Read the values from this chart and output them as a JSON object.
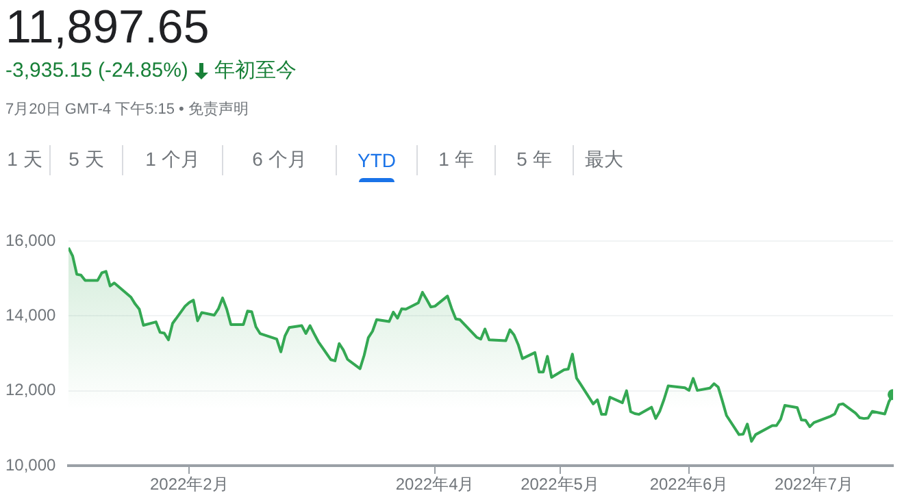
{
  "chart_data": {
    "type": "area",
    "title": "11,897.65",
    "subtitle": "-3,935.15 (-24.85%)",
    "annotations": [
      "年初至今",
      "7月20日 GMT-4 下午5:15 • 免责声明",
      "1 天",
      "5 天",
      "1 个月",
      "6 个月",
      "YTD",
      "1 年",
      "5 年",
      "最大"
    ],
    "x": [
      "2022-01-03",
      "2022-01-04",
      "2022-01-05",
      "2022-01-06",
      "2022-01-07",
      "2022-01-10",
      "2022-01-11",
      "2022-01-12",
      "2022-01-13",
      "2022-01-14",
      "2022-01-18",
      "2022-01-19",
      "2022-01-20",
      "2022-01-21",
      "2022-01-24",
      "2022-01-25",
      "2022-01-26",
      "2022-01-27",
      "2022-01-28",
      "2022-01-31",
      "2022-02-01",
      "2022-02-02",
      "2022-02-03",
      "2022-02-04",
      "2022-02-07",
      "2022-02-08",
      "2022-02-09",
      "2022-02-10",
      "2022-02-11",
      "2022-02-14",
      "2022-02-15",
      "2022-02-16",
      "2022-02-17",
      "2022-02-18",
      "2022-02-22",
      "2022-02-23",
      "2022-02-24",
      "2022-02-25",
      "2022-02-28",
      "2022-03-01",
      "2022-03-02",
      "2022-03-03",
      "2022-03-04",
      "2022-03-07",
      "2022-03-08",
      "2022-03-09",
      "2022-03-10",
      "2022-03-11",
      "2022-03-14",
      "2022-03-15",
      "2022-03-16",
      "2022-03-17",
      "2022-03-18",
      "2022-03-21",
      "2022-03-22",
      "2022-03-23",
      "2022-03-24",
      "2022-03-25",
      "2022-03-28",
      "2022-03-29",
      "2022-03-30",
      "2022-03-31",
      "2022-04-01",
      "2022-04-04",
      "2022-04-05",
      "2022-04-06",
      "2022-04-07",
      "2022-04-11",
      "2022-04-12",
      "2022-04-13",
      "2022-04-14",
      "2022-04-18",
      "2022-04-19",
      "2022-04-20",
      "2022-04-21",
      "2022-04-22",
      "2022-04-25",
      "2022-04-26",
      "2022-04-27",
      "2022-04-28",
      "2022-04-29",
      "2022-05-02",
      "2022-05-03",
      "2022-05-04",
      "2022-05-05",
      "2022-05-06",
      "2022-05-09",
      "2022-05-10",
      "2022-05-11",
      "2022-05-12",
      "2022-05-13",
      "2022-05-16",
      "2022-05-17",
      "2022-05-18",
      "2022-05-19",
      "2022-05-20",
      "2022-05-23",
      "2022-05-24",
      "2022-05-25",
      "2022-05-26",
      "2022-05-27",
      "2022-05-31",
      "2022-06-01",
      "2022-06-02",
      "2022-06-03",
      "2022-06-06",
      "2022-06-07",
      "2022-06-08",
      "2022-06-09",
      "2022-06-10",
      "2022-06-13",
      "2022-06-14",
      "2022-06-15",
      "2022-06-16",
      "2022-06-17",
      "2022-06-21",
      "2022-06-22",
      "2022-06-23",
      "2022-06-24",
      "2022-06-27",
      "2022-06-28",
      "2022-06-29",
      "2022-06-30",
      "2022-07-01",
      "2022-07-05",
      "2022-07-06",
      "2022-07-07",
      "2022-07-08",
      "2022-07-11",
      "2022-07-12",
      "2022-07-13",
      "2022-07-14",
      "2022-07-15",
      "2022-07-18",
      "2022-07-19",
      "2022-07-20"
    ],
    "series": [
      {
        "color": "#34a853",
        "values": [
          15820,
          15600,
          15110,
          15090,
          14950,
          14950,
          15150,
          15190,
          14800,
          14880,
          14500,
          14320,
          14180,
          13750,
          13840,
          13560,
          13540,
          13360,
          13800,
          14260,
          14360,
          14420,
          13870,
          14090,
          14020,
          14190,
          14480,
          14180,
          13770,
          13770,
          14130,
          14110,
          13710,
          13530,
          13380,
          13040,
          13470,
          13690,
          13740,
          13530,
          13740,
          13520,
          13310,
          12830,
          12800,
          13260,
          13090,
          12840,
          12590,
          12950,
          13420,
          13590,
          13900,
          13850,
          14100,
          13940,
          14190,
          14180,
          14350,
          14630,
          14440,
          14240,
          14260,
          14530,
          14200,
          13920,
          13900,
          13430,
          13380,
          13650,
          13360,
          13340,
          13630,
          13490,
          13230,
          12860,
          13020,
          12500,
          12500,
          12920,
          12360,
          12560,
          12580,
          12980,
          12340,
          12170,
          11650,
          11760,
          11370,
          11370,
          11830,
          11680,
          12000,
          11440,
          11390,
          11370,
          11560,
          11260,
          11460,
          11770,
          12130,
          12080,
          12010,
          12330,
          12010,
          12070,
          12190,
          12100,
          11730,
          11340,
          10830,
          10840,
          11110,
          10650,
          10830,
          11070,
          11070,
          11240,
          11610,
          11550,
          11220,
          11210,
          11040,
          11150,
          11320,
          11380,
          11630,
          11650,
          11400,
          11280,
          11260,
          11270,
          11450,
          11380,
          11710,
          11897.65
        ]
      }
    ],
    "xlim": [
      "2022-01-03",
      "2022-07-20"
    ],
    "xticks": [
      {
        "value": "2022-02-01",
        "label": "2022年2月"
      },
      {
        "value": "2022-04-01",
        "label": "2022年4月"
      },
      {
        "value": "2022-05-01",
        "label": "2022年5月"
      },
      {
        "value": "2022-06-01",
        "label": "2022年6月"
      },
      {
        "value": "2022-07-01",
        "label": "2022年7月"
      }
    ],
    "ylim": [
      10000,
      16000
    ],
    "yticks": [
      {
        "value": 10000,
        "label": "10,000"
      },
      {
        "value": 12000,
        "label": "12,000"
      },
      {
        "value": 14000,
        "label": "14,000"
      },
      {
        "value": 16000,
        "label": "16,000"
      }
    ],
    "grid": "y",
    "legend": false
  }
}
